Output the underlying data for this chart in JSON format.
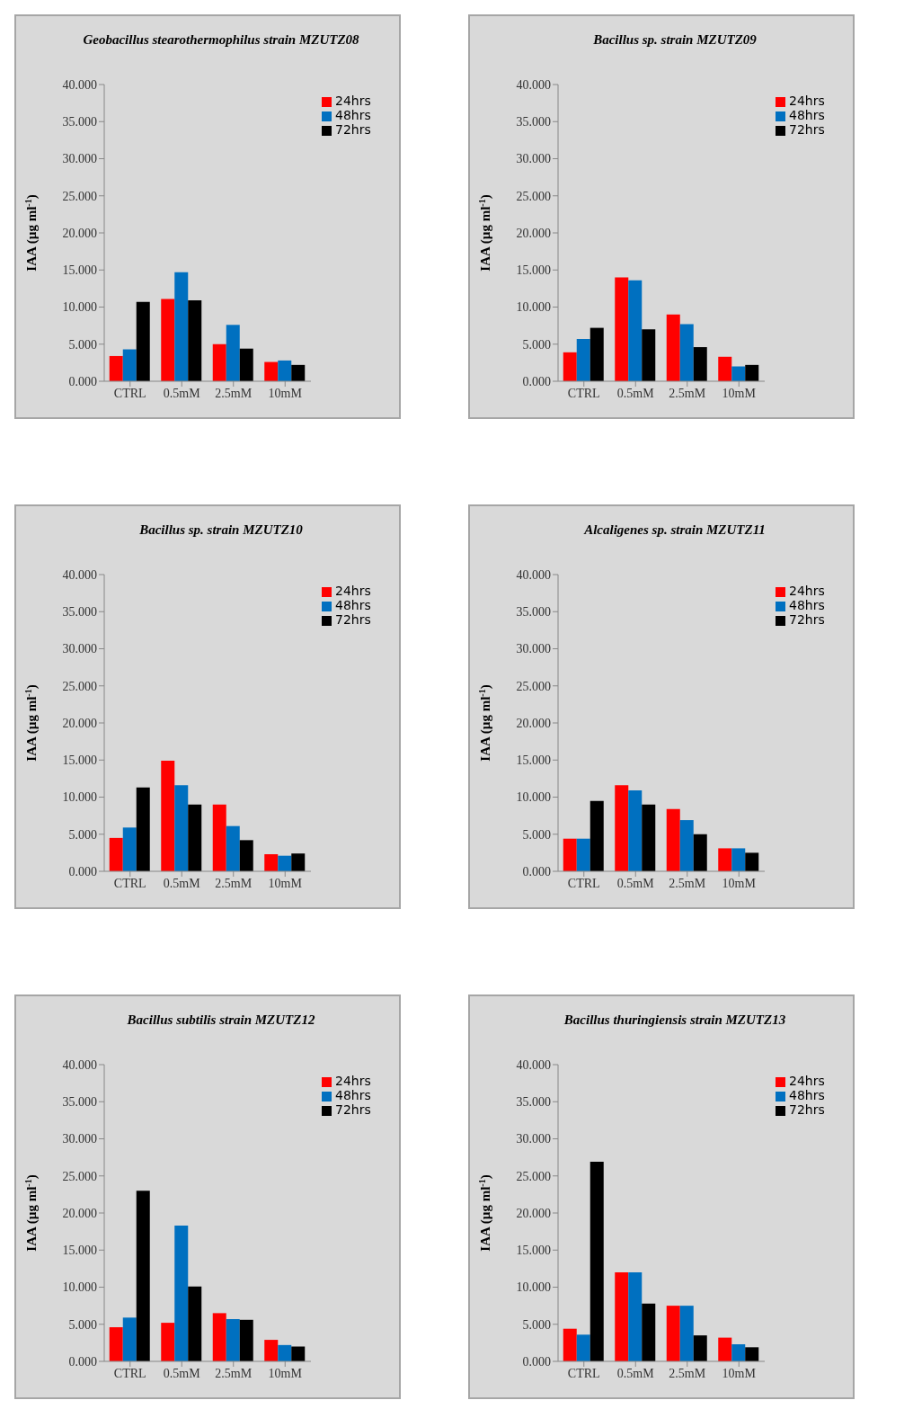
{
  "chart_data": [
    {
      "type": "bar",
      "title": "Geobacillus stearothermophilus strain MZUTZ08",
      "ylabel": "IAA (µg ml$^{-1}$)",
      "categories": [
        "CTRL",
        "0.5mM",
        "2.5mM",
        "10mM"
      ],
      "series": [
        {
          "name": "24hrs",
          "color": "#ff0000",
          "values": [
            3.4,
            11.1,
            5.0,
            2.6
          ]
        },
        {
          "name": "48hrs",
          "color": "#0070c0",
          "values": [
            4.3,
            14.7,
            7.6,
            2.8
          ]
        },
        {
          "name": "72hrs",
          "color": "#000000",
          "values": [
            10.7,
            10.9,
            4.4,
            2.2
          ]
        }
      ],
      "ylim": [
        0,
        40
      ],
      "yticks": [
        {
          "value": 0,
          "label": "0.000"
        },
        {
          "value": 5,
          "label": "5.000"
        },
        {
          "value": 10,
          "label": "10.000"
        },
        {
          "value": 15,
          "label": "15.000"
        },
        {
          "value": 20,
          "label": "20.000"
        },
        {
          "value": 25,
          "label": "25.000"
        },
        {
          "value": 30,
          "label": "30.000"
        },
        {
          "value": 35,
          "label": "35.000"
        },
        {
          "value": 40,
          "label": "40.000"
        }
      ],
      "legend": "top right",
      "grid": false
    },
    {
      "type": "bar",
      "title": "Bacillus sp. strain MZUTZ09",
      "ylabel": "IAA (µg ml$^{-1}$)",
      "categories": [
        "CTRL",
        "0.5mM",
        "2.5mM",
        "10mM"
      ],
      "series": [
        {
          "name": "24hrs",
          "color": "#ff0000",
          "values": [
            3.9,
            14.0,
            9.0,
            3.3
          ]
        },
        {
          "name": "48hrs",
          "color": "#0070c0",
          "values": [
            5.7,
            13.6,
            7.7,
            2.0
          ]
        },
        {
          "name": "72hrs",
          "color": "#000000",
          "values": [
            7.2,
            7.0,
            4.6,
            2.2
          ]
        }
      ],
      "ylim": [
        0,
        40
      ],
      "yticks": [
        {
          "value": 0,
          "label": "0.000"
        },
        {
          "value": 5,
          "label": "5.000"
        },
        {
          "value": 10,
          "label": "10.000"
        },
        {
          "value": 15,
          "label": "15.000"
        },
        {
          "value": 20,
          "label": "20.000"
        },
        {
          "value": 25,
          "label": "25.000"
        },
        {
          "value": 30,
          "label": "30.000"
        },
        {
          "value": 35,
          "label": "35.000"
        },
        {
          "value": 40,
          "label": "40.000"
        }
      ],
      "legend": "top right",
      "grid": false
    },
    {
      "type": "bar",
      "title": "Bacillus sp. strain MZUTZ10",
      "ylabel": "IAA (µg ml$^{-1}$)",
      "categories": [
        "CTRL",
        "0.5mM",
        "2.5mM",
        "10mM"
      ],
      "series": [
        {
          "name": "24hrs",
          "color": "#ff0000",
          "values": [
            4.5,
            14.9,
            9.0,
            2.3
          ]
        },
        {
          "name": "48hrs",
          "color": "#0070c0",
          "values": [
            5.9,
            11.6,
            6.1,
            2.1
          ]
        },
        {
          "name": "72hrs",
          "color": "#000000",
          "values": [
            11.3,
            9.0,
            4.2,
            2.4
          ]
        }
      ],
      "ylim": [
        0,
        40
      ],
      "yticks": [
        {
          "value": 0,
          "label": "0.000"
        },
        {
          "value": 5,
          "label": "5.000"
        },
        {
          "value": 10,
          "label": "10.000"
        },
        {
          "value": 15,
          "label": "15.000"
        },
        {
          "value": 20,
          "label": "20.000"
        },
        {
          "value": 25,
          "label": "25.000"
        },
        {
          "value": 30,
          "label": "30.000"
        },
        {
          "value": 35,
          "label": "35.000"
        },
        {
          "value": 40,
          "label": "40.000"
        }
      ],
      "legend": "top right",
      "grid": false
    },
    {
      "type": "bar",
      "title": "Alcaligenes sp. strain MZUTZ11",
      "ylabel": "IAA (µg ml$^{-1}$)",
      "categories": [
        "CTRL",
        "0.5mM",
        "2.5mM",
        "10mM"
      ],
      "series": [
        {
          "name": "24hrs",
          "color": "#ff0000",
          "values": [
            4.4,
            11.6,
            8.4,
            3.1
          ]
        },
        {
          "name": "48hrs",
          "color": "#0070c0",
          "values": [
            4.4,
            10.9,
            6.9,
            3.1
          ]
        },
        {
          "name": "72hrs",
          "color": "#000000",
          "values": [
            9.5,
            9.0,
            5.0,
            2.5
          ]
        }
      ],
      "ylim": [
        0,
        40
      ],
      "yticks": [
        {
          "value": 0,
          "label": "0.000"
        },
        {
          "value": 5,
          "label": "5.000"
        },
        {
          "value": 10,
          "label": "10.000"
        },
        {
          "value": 15,
          "label": "15.000"
        },
        {
          "value": 20,
          "label": "20.000"
        },
        {
          "value": 25,
          "label": "25.000"
        },
        {
          "value": 30,
          "label": "30.000"
        },
        {
          "value": 35,
          "label": "35.000"
        },
        {
          "value": 40,
          "label": "40.000"
        }
      ],
      "legend": "top right",
      "grid": false
    },
    {
      "type": "bar",
      "title": "Bacillus subtilis strain MZUTZ12",
      "ylabel": "IAA  (µg ml$^{-1}$)",
      "categories": [
        "CTRL",
        "0.5mM",
        "2.5mM",
        "10mM"
      ],
      "series": [
        {
          "name": "24hrs",
          "color": "#ff0000",
          "values": [
            4.6,
            5.2,
            6.5,
            2.9
          ]
        },
        {
          "name": "48hrs",
          "color": "#0070c0",
          "values": [
            5.9,
            18.3,
            5.7,
            2.2
          ]
        },
        {
          "name": "72hrs",
          "color": "#000000",
          "values": [
            23.0,
            10.1,
            5.6,
            2.0
          ]
        }
      ],
      "ylim": [
        0,
        40
      ],
      "yticks": [
        {
          "value": 0,
          "label": "0.000"
        },
        {
          "value": 5,
          "label": "5.000"
        },
        {
          "value": 10,
          "label": "10.000"
        },
        {
          "value": 15,
          "label": "15.000"
        },
        {
          "value": 20,
          "label": "20.000"
        },
        {
          "value": 25,
          "label": "25.000"
        },
        {
          "value": 30,
          "label": "30.000"
        },
        {
          "value": 35,
          "label": "35.000"
        },
        {
          "value": 40,
          "label": "40.000"
        }
      ],
      "legend": "top right",
      "grid": false
    },
    {
      "type": "bar",
      "title": "Bacillus thuringiensis strain MZUTZ13",
      "ylabel": "IAA  (µg ml$^{-1}$)",
      "categories": [
        "CTRL",
        "0.5mM",
        "2.5mM",
        "10mM"
      ],
      "series": [
        {
          "name": "24hrs",
          "color": "#ff0000",
          "values": [
            4.4,
            12.0,
            7.5,
            3.2
          ]
        },
        {
          "name": "48hrs",
          "color": "#0070c0",
          "values": [
            3.6,
            12.0,
            7.5,
            2.3
          ]
        },
        {
          "name": "72hrs",
          "color": "#000000",
          "values": [
            26.9,
            7.8,
            3.5,
            1.9
          ]
        }
      ],
      "ylim": [
        0,
        40
      ],
      "yticks": [
        {
          "value": 0,
          "label": "0.000"
        },
        {
          "value": 5,
          "label": "5.000"
        },
        {
          "value": 10,
          "label": "10.000"
        },
        {
          "value": 15,
          "label": "15.000"
        },
        {
          "value": 20,
          "label": "20.000"
        },
        {
          "value": 25,
          "label": "25.000"
        },
        {
          "value": 30,
          "label": "30.000"
        },
        {
          "value": 35,
          "label": "35.000"
        },
        {
          "value": 40,
          "label": "40.000"
        }
      ],
      "legend": "top right",
      "grid": false
    }
  ]
}
